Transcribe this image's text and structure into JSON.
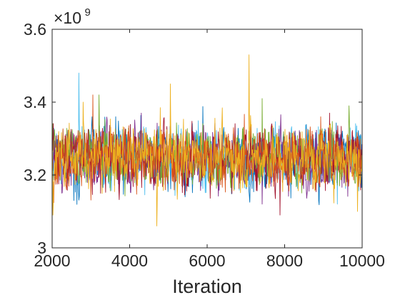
{
  "chart_data": {
    "type": "line",
    "title": "",
    "xlabel": "Iteration",
    "ylabel": "",
    "xlim": [
      2000,
      10000
    ],
    "ylim": [
      3.0,
      3.6
    ],
    "y_multiplier": {
      "base": "×10",
      "exponent": "9"
    },
    "x_ticks": [
      2000,
      4000,
      6000,
      8000,
      10000
    ],
    "x_tick_labels": [
      "2000",
      "4000",
      "6000",
      "8000",
      "10000"
    ],
    "y_ticks": [
      3.0,
      3.2,
      3.4,
      3.6
    ],
    "y_tick_labels": [
      "3",
      "3.2",
      "3.4",
      "3.6"
    ],
    "grid": false,
    "legend": "none",
    "series_count": 7,
    "series_colors": [
      "#0072BD",
      "#D95319",
      "#EDB120",
      "#7E2F8E",
      "#77AC30",
      "#4DBEEE",
      "#A2142F"
    ],
    "iteration_step": 10,
    "typical_mean": 3.25,
    "typical_band": [
      3.13,
      3.37
    ],
    "series": [
      {
        "color": "#0072BD",
        "mean": 3.25,
        "notable_points": [
          {
            "x": 2560,
            "y": 3.13
          },
          {
            "x": 3640,
            "y": 3.36
          },
          {
            "x": 8880,
            "y": 3.13
          }
        ]
      },
      {
        "color": "#4DBEEE",
        "mean": 3.25,
        "notable_points": [
          {
            "x": 2690,
            "y": 3.48
          },
          {
            "x": 9360,
            "y": 3.12
          }
        ]
      },
      {
        "color": "#7E2F8E",
        "mean": 3.25,
        "notable_points": [
          {
            "x": 4300,
            "y": 3.37
          },
          {
            "x": 7420,
            "y": 3.12
          }
        ]
      },
      {
        "color": "#77AC30",
        "mean": 3.25,
        "notable_points": [
          {
            "x": 3210,
            "y": 3.42
          },
          {
            "x": 7420,
            "y": 3.41
          },
          {
            "x": 9660,
            "y": 3.39
          }
        ]
      },
      {
        "color": "#A2142F",
        "mean": 3.25,
        "notable_points": [
          {
            "x": 7880,
            "y": 3.09
          },
          {
            "x": 9160,
            "y": 3.37
          }
        ]
      },
      {
        "color": "#D95319",
        "mean": 3.25,
        "notable_points": [
          {
            "x": 3050,
            "y": 3.42
          },
          {
            "x": 8930,
            "y": 3.36
          }
        ]
      },
      {
        "color": "#EDB120",
        "mean": 3.25,
        "notable_points": [
          {
            "x": 2020,
            "y": 3.09
          },
          {
            "x": 2800,
            "y": 3.4
          },
          {
            "x": 4700,
            "y": 3.06
          },
          {
            "x": 5050,
            "y": 3.45
          },
          {
            "x": 7080,
            "y": 3.53
          },
          {
            "x": 9880,
            "y": 3.1
          }
        ]
      }
    ]
  }
}
